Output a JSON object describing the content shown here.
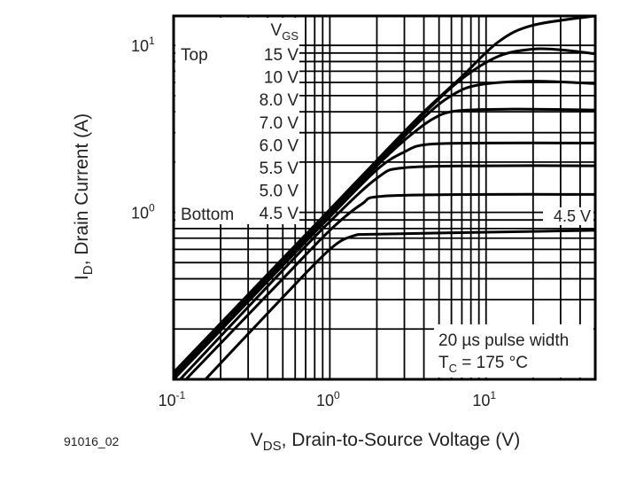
{
  "chart_data": {
    "type": "line",
    "title": "",
    "figure_id": "91016_02",
    "xlabel": {
      "main": "V",
      "sub": "DS",
      "rest": ", Drain-to-Source Voltage (V)"
    },
    "ylabel": {
      "main": "I",
      "sub": "D",
      "rest": ", Drain Current (A)"
    },
    "x_scale": "log",
    "y_scale": "log",
    "xlim": [
      0.1,
      50
    ],
    "ylim": [
      0.1,
      15
    ],
    "grid": true,
    "x_ticks": [
      {
        "base": "10",
        "exp": "-1",
        "value": 0.1
      },
      {
        "base": "10",
        "exp": "0",
        "value": 1
      },
      {
        "base": "10",
        "exp": "1",
        "value": 10
      }
    ],
    "y_ticks": [
      {
        "base": "10",
        "exp": "0",
        "value": 1
      },
      {
        "base": "10",
        "exp": "1",
        "value": 10
      }
    ],
    "legend": {
      "title": {
        "main": "V",
        "sub": "GS"
      },
      "top_label": "Top",
      "bottom_label": "Bottom",
      "placement": "top-left",
      "entries": [
        "15 V",
        "10 V",
        "8.0 V",
        "7.0 V",
        "6.0 V",
        "5.5 V",
        "5.0 V",
        "4.5 V"
      ]
    },
    "annotations": {
      "pulse": "20 µs pulse width",
      "temp": {
        "main": "T",
        "sub": "C",
        "rest": " = 175 °C"
      },
      "curve_label": "4.5 V"
    },
    "series": [
      {
        "name": "15 V",
        "points": [
          [
            0.1,
            0.11
          ],
          [
            0.5,
            0.53
          ],
          [
            1,
            1.04
          ],
          [
            2,
            2.05
          ],
          [
            4,
            4.0
          ],
          [
            7,
            6.5
          ],
          [
            12,
            10.5
          ],
          [
            20,
            13.2
          ],
          [
            50,
            15
          ]
        ]
      },
      {
        "name": "10 V",
        "points": [
          [
            0.1,
            0.105
          ],
          [
            0.5,
            0.52
          ],
          [
            1,
            1.02
          ],
          [
            2,
            2.0
          ],
          [
            4,
            3.9
          ],
          [
            7,
            6.3
          ],
          [
            12,
            8.6
          ],
          [
            20,
            9.5
          ],
          [
            30,
            9.4
          ],
          [
            50,
            8.9
          ]
        ]
      },
      {
        "name": "8.0 V",
        "points": [
          [
            0.1,
            0.1
          ],
          [
            0.5,
            0.5
          ],
          [
            1,
            1.0
          ],
          [
            2,
            1.95
          ],
          [
            4,
            3.7
          ],
          [
            6,
            5.0
          ],
          [
            9,
            5.8
          ],
          [
            20,
            6.1
          ],
          [
            50,
            5.9
          ]
        ]
      },
      {
        "name": "7.0 V",
        "points": [
          [
            0.1,
            0.1
          ],
          [
            0.5,
            0.5
          ],
          [
            1,
            0.98
          ],
          [
            2,
            1.9
          ],
          [
            3,
            2.7
          ],
          [
            4.5,
            3.6
          ],
          [
            6.5,
            4.05
          ],
          [
            15,
            4.15
          ],
          [
            50,
            4.1
          ]
        ]
      },
      {
        "name": "6.0 V",
        "points": [
          [
            0.1,
            0.1
          ],
          [
            0.5,
            0.48
          ],
          [
            1,
            0.94
          ],
          [
            2,
            1.8
          ],
          [
            3,
            2.3
          ],
          [
            4.2,
            2.55
          ],
          [
            10,
            2.6
          ],
          [
            50,
            2.6
          ]
        ]
      },
      {
        "name": "5.5 V",
        "points": [
          [
            0.11,
            0.1
          ],
          [
            0.5,
            0.45
          ],
          [
            1,
            0.88
          ],
          [
            2,
            1.6
          ],
          [
            3,
            1.85
          ],
          [
            10,
            1.9
          ],
          [
            50,
            1.9
          ]
        ]
      },
      {
        "name": "5.0 V",
        "points": [
          [
            0.12,
            0.1
          ],
          [
            0.5,
            0.4
          ],
          [
            1,
            0.78
          ],
          [
            1.6,
            1.12
          ],
          [
            2.2,
            1.25
          ],
          [
            10,
            1.28
          ],
          [
            50,
            1.28
          ]
        ]
      },
      {
        "name": "4.5 V",
        "points": [
          [
            0.16,
            0.1
          ],
          [
            0.5,
            0.31
          ],
          [
            1,
            0.6
          ],
          [
            1.4,
            0.72
          ],
          [
            2,
            0.74
          ],
          [
            10,
            0.76
          ],
          [
            50,
            0.78
          ]
        ]
      }
    ]
  }
}
